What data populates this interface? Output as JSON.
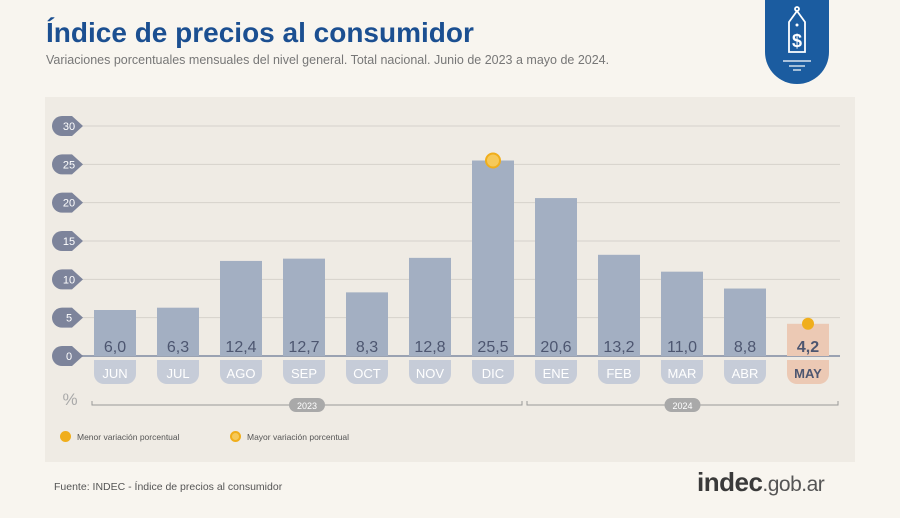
{
  "header": {
    "title": "Índice de precios al consumidor",
    "subtitle": "Variaciones porcentuales mensuales del nivel general. Total nacional. Junio de 2023 a mayo de 2024."
  },
  "badge_icon": "price-tag-dollar-icon",
  "chart_data": {
    "type": "bar",
    "categories": [
      "JUN",
      "JUL",
      "AGO",
      "SEP",
      "OCT",
      "NOV",
      "DIC",
      "ENE",
      "FEB",
      "MAR",
      "ABR",
      "MAY"
    ],
    "values": [
      6.0,
      6.3,
      12.4,
      12.7,
      8.3,
      12.8,
      25.5,
      20.6,
      13.2,
      11.0,
      8.8,
      4.2
    ],
    "value_labels": [
      "6,0",
      "6,3",
      "12,4",
      "12,7",
      "8,3",
      "12,8",
      "25,5",
      "20,6",
      "13,2",
      "11,0",
      "8,8",
      "4,2"
    ],
    "ylabel": "%",
    "ylim": [
      0,
      30
    ],
    "yticks": [
      0,
      5,
      10,
      15,
      20,
      25,
      30
    ],
    "grid": true,
    "year_groups": [
      {
        "label": "2023",
        "from": "JUN",
        "to": "DIC"
      },
      {
        "label": "2024",
        "from": "ENE",
        "to": "MAY"
      }
    ],
    "highlight_max": "DIC",
    "highlight_min": "MAY",
    "colors": {
      "bar": "#a3afc2",
      "bar_min": "#ecc9b4",
      "marker": "#f0ae1c",
      "label": "#4d5670"
    }
  },
  "legend": {
    "min": "Menor variación porcentual",
    "max": "Mayor variación porcentual"
  },
  "footer": {
    "source": "Fuente: INDEC - Índice de precios al consumidor",
    "logo_main": "indec",
    "logo_domain": ".gob.ar"
  }
}
